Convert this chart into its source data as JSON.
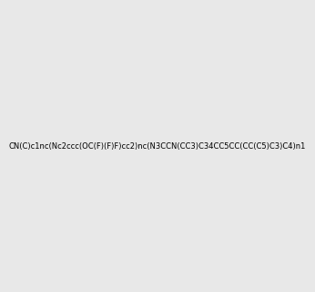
{
  "smiles": "CN(C)c1nc(Nc2ccc(OC(F)(F)F)cc2)nc(N3CCN(CC3)C34CC5CC(CC(C5)C3)C4)n1",
  "image_size": 300,
  "background_color": "#e8e8e8",
  "title": ""
}
